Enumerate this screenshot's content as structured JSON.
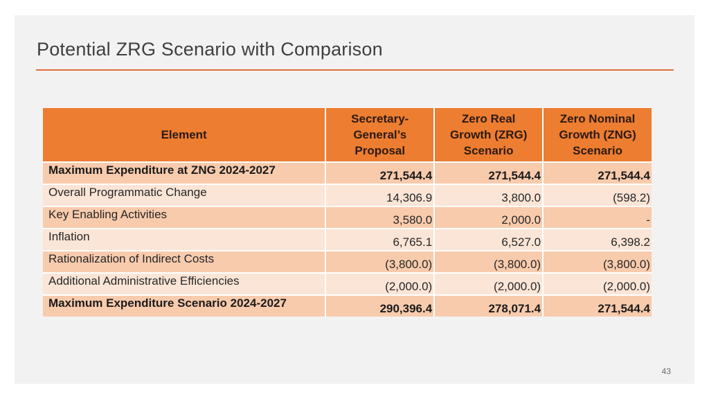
{
  "title": "Potential ZRG Scenario with Comparison",
  "page_number": "43",
  "table": {
    "headers": [
      "Element",
      "Secretary-\nGeneral’s\nProposal",
      "Zero Real\nGrowth (ZRG)\nScenario",
      "Zero Nominal\nGrowth (ZNG)\nScenario"
    ],
    "header_lines": [
      [
        "Element"
      ],
      [
        "Secretary-",
        "General’s",
        "Proposal"
      ],
      [
        "Zero Real",
        "Growth (ZRG)",
        "Scenario"
      ],
      [
        "Zero Nominal",
        "Growth (ZNG)",
        "Scenario"
      ]
    ],
    "rows": [
      [
        "Maximum Expenditure at ZNG 2024-2027",
        "271,544.4",
        "271,544.4",
        "271,544.4"
      ],
      [
        "Overall Programmatic Change",
        "14,306.9",
        "3,800.0",
        "(598.2)"
      ],
      [
        "Key Enabling Activities",
        "3,580.0",
        "2,000.0",
        "-"
      ],
      [
        "Inflation",
        "6,765.1",
        "6,527.0",
        "6,398.2"
      ],
      [
        "Rationalization of Indirect Costs",
        "(3,800.0)",
        "(3,800.0)",
        "(3,800.0)"
      ],
      [
        "Additional Administrative Efficiencies",
        "(2,000.0)",
        "(2,000.0)",
        "(2,000.0)"
      ],
      [
        "Maximum Expenditure Scenario 2024-2027",
        "290,396.4",
        "278,071.4",
        "271,544.4"
      ]
    ]
  },
  "colors": {
    "header_bg": "#ed7d31",
    "row_odd": "#f8cbad",
    "row_even": "#fbe5d6",
    "rule": "#e0703a"
  }
}
